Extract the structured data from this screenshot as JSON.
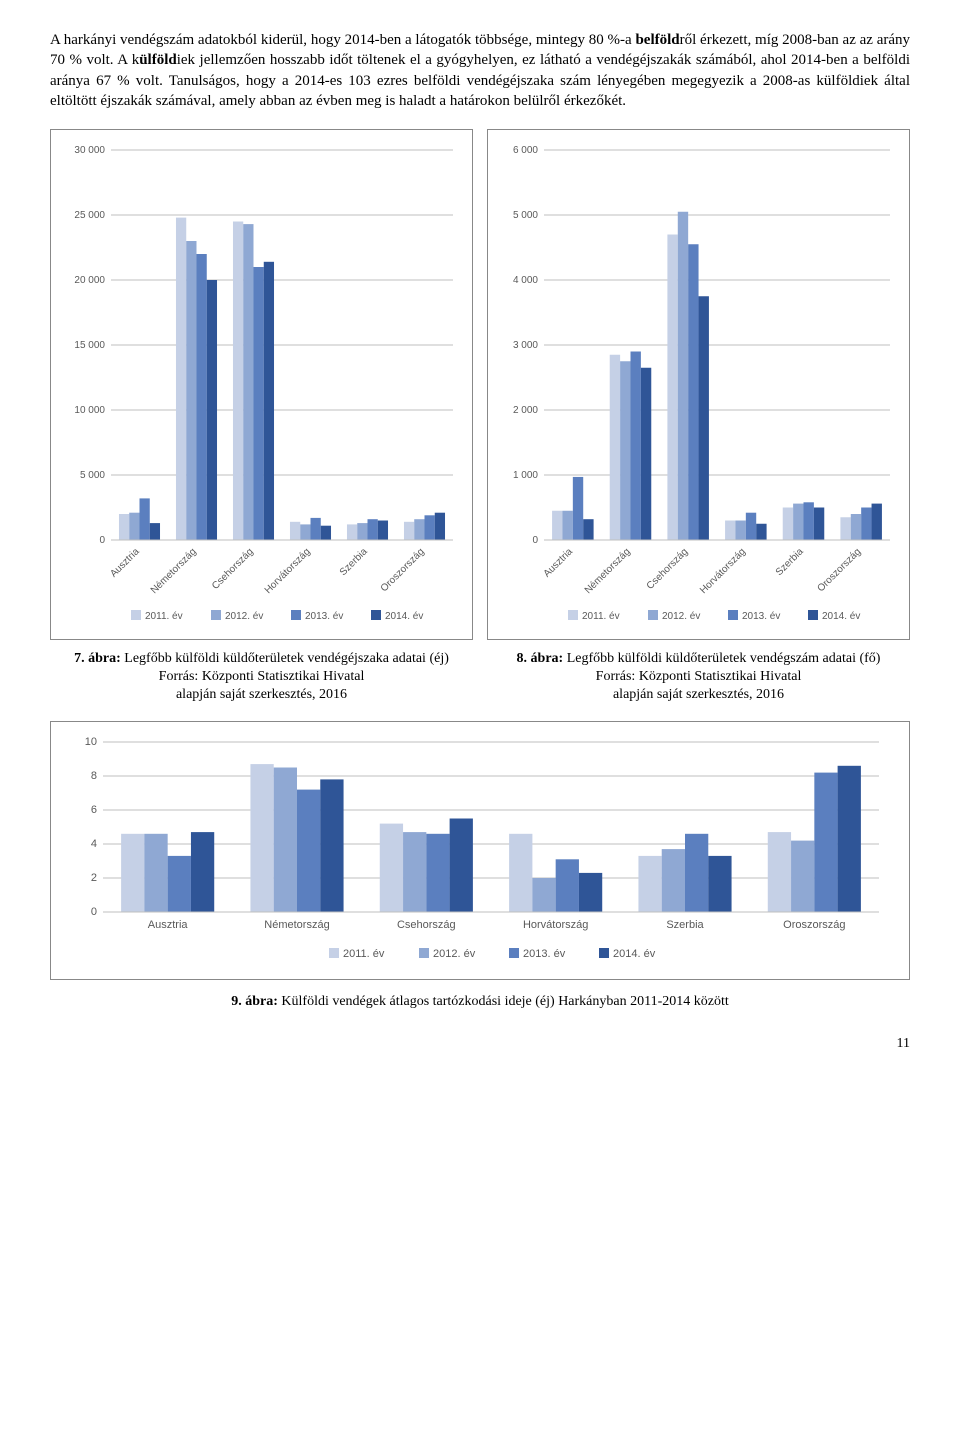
{
  "paragraph_html": "A harkányi vendégszám adatokból kiderül, hogy 2014-ben a látogatók többsége, mintegy 80 %-a <b>belföld</b>ről érkezett, míg 2008-ban az az arány 70 % volt. A k<b>ülföld</b>iek jellemzően hosszabb időt töltenek el a gyógyhelyen, ez látható a vendégéjszakák számából, ahol 2014-ben a belföldi aránya 67 % volt. Tanulságos, hogy a 2014-es 103 ezres belföldi vendégéjszaka szám lényegében megegyezik a 2008-as külföldiek által eltöltött éjszakák számával, amely abban az évben meg is haladt a határokon belülről érkezőkét.",
  "legend_labels": [
    "2011. év",
    "2012. év",
    "2013. év",
    "2014. év"
  ],
  "series_colors": [
    "#c5d0e6",
    "#8fa8d3",
    "#5b7fbf",
    "#2f5597"
  ],
  "axis_color": "#888888",
  "grid_color": "#bfbfbf",
  "text_color": "#595959",
  "bg_color": "#ffffff",
  "chart7": {
    "type": "bar",
    "categories": [
      "Ausztria",
      "Németország",
      "Csehország",
      "Horvátország",
      "Szerbia",
      "Oroszország"
    ],
    "series": [
      [
        2000,
        24800,
        24500,
        1400,
        1200,
        1400
      ],
      [
        2100,
        23000,
        24300,
        1200,
        1300,
        1600
      ],
      [
        3200,
        22000,
        21000,
        1700,
        1600,
        1900
      ],
      [
        1300,
        20000,
        21400,
        1100,
        1500,
        2100
      ]
    ],
    "ylim": [
      0,
      30000
    ],
    "ytick_step": 5000,
    "label_fontsize": 10,
    "rotate_xlabels": -45
  },
  "chart8": {
    "type": "bar",
    "categories": [
      "Ausztria",
      "Németország",
      "Csehország",
      "Horvátország",
      "Szerbia",
      "Oroszország"
    ],
    "series": [
      [
        450,
        2850,
        4700,
        300,
        500,
        350
      ],
      [
        450,
        2750,
        5050,
        300,
        560,
        400
      ],
      [
        970,
        2900,
        4550,
        420,
        580,
        500
      ],
      [
        320,
        2650,
        3750,
        250,
        500,
        560
      ]
    ],
    "ylim": [
      0,
      6000
    ],
    "ytick_step": 1000,
    "label_fontsize": 10,
    "rotate_xlabels": -45
  },
  "chart9": {
    "type": "bar",
    "categories": [
      "Ausztria",
      "Németország",
      "Csehország",
      "Horvátország",
      "Szerbia",
      "Oroszország"
    ],
    "series": [
      [
        4.6,
        8.7,
        5.2,
        4.6,
        3.3,
        4.7
      ],
      [
        4.6,
        8.5,
        4.7,
        2.0,
        3.7,
        4.2
      ],
      [
        3.3,
        7.2,
        4.6,
        3.1,
        4.6,
        8.2
      ],
      [
        4.7,
        7.8,
        5.5,
        2.3,
        3.3,
        8.6
      ]
    ],
    "ylim": [
      0,
      10
    ],
    "ytick_step": 2,
    "label_fontsize": 11,
    "rotate_xlabels": 0
  },
  "caption7": {
    "title": "7. ábra:",
    "rest": " Legfőbb külföldi küldőterületek vendégéjszaka adatai (éj)",
    "src1": "Forrás: Központi Statisztikai Hivatal",
    "src2": "alapján saját szerkesztés, 2016"
  },
  "caption8": {
    "title": "8. ábra:",
    "rest": " Legfőbb külföldi küldőterületek vendégszám adatai (fő)",
    "src1": "Forrás: Központi Statisztikai Hivatal",
    "src2": "alapján saját szerkesztés, 2016"
  },
  "caption9": {
    "title": "9. ábra:",
    "rest": " Külföldi vendégek átlagos tartózkodási ideje (éj) Harkányban 2011-2014 között"
  },
  "page_number": "11"
}
